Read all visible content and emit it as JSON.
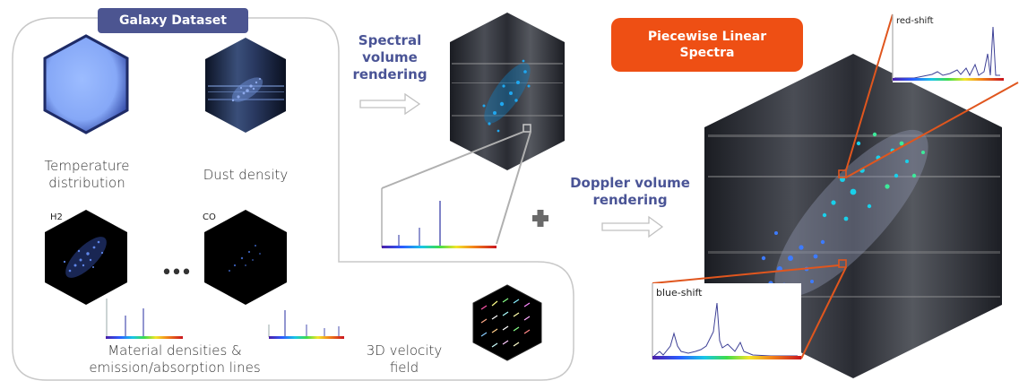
{
  "dataset": {
    "badge": "Galaxy Dataset",
    "temperature_caption_1": "Temperature",
    "temperature_caption_2": "distribution",
    "dust_caption": "Dust density",
    "h2_label": "H2",
    "co_label": "CO",
    "ellipsis": "•••",
    "materials_caption_1": "Material densities &",
    "materials_caption_2": "emission/absorption lines"
  },
  "velocity": {
    "caption_1": "3D velocity",
    "caption_2": "field"
  },
  "spectral_step": {
    "label_1": "Spectral",
    "label_2": "volume",
    "label_3": "rendering"
  },
  "plus": "+",
  "doppler_step": {
    "label_1": "Doppler volume",
    "label_2": "rendering"
  },
  "output": {
    "badge_1": "Piecewise Linear",
    "badge_2": "Spectra",
    "red_shift_label": "red-shift",
    "blue_shift_label": "blue-shift"
  },
  "colors": {
    "badge_blue": "#4c5591",
    "badge_orange": "#ee4f14",
    "step_text": "#4a5496",
    "callout_gray": "#b0b0b0",
    "callout_orange": "#e0561e"
  }
}
